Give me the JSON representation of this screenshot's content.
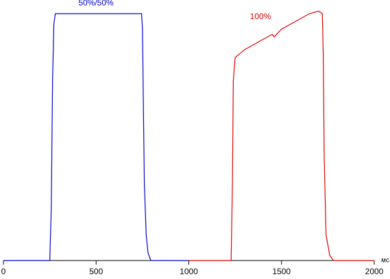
{
  "chart_data": {
    "type": "line",
    "x_label": "мс",
    "xlim": [
      0,
      2000
    ],
    "xticks": [
      0,
      500,
      1000,
      1500,
      2000
    ],
    "ylim": [
      0,
      100
    ],
    "series": [
      {
        "name": "50%/50%",
        "color": "#0000cc",
        "x": [
          0,
          250,
          258,
          265,
          272,
          280,
          300,
          400,
          500,
          600,
          700,
          745,
          750,
          755,
          760,
          770,
          780,
          795,
          1000
        ],
        "values": [
          0,
          0,
          20,
          70,
          92,
          96,
          96,
          96,
          96,
          96,
          96,
          96,
          90,
          60,
          30,
          10,
          3,
          0,
          0
        ]
      },
      {
        "name": "100%",
        "color": "#dd0000",
        "x": [
          1000,
          1228,
          1235,
          1240,
          1250,
          1300,
          1400,
          1450,
          1460,
          1500,
          1600,
          1650,
          1700,
          1720,
          1725,
          1730,
          1740,
          1760,
          1780,
          2000
        ],
        "values": [
          0,
          0,
          30,
          70,
          79,
          82,
          86,
          88,
          87,
          90,
          94,
          96,
          97,
          96,
          80,
          40,
          10,
          2,
          0,
          0
        ]
      }
    ]
  }
}
